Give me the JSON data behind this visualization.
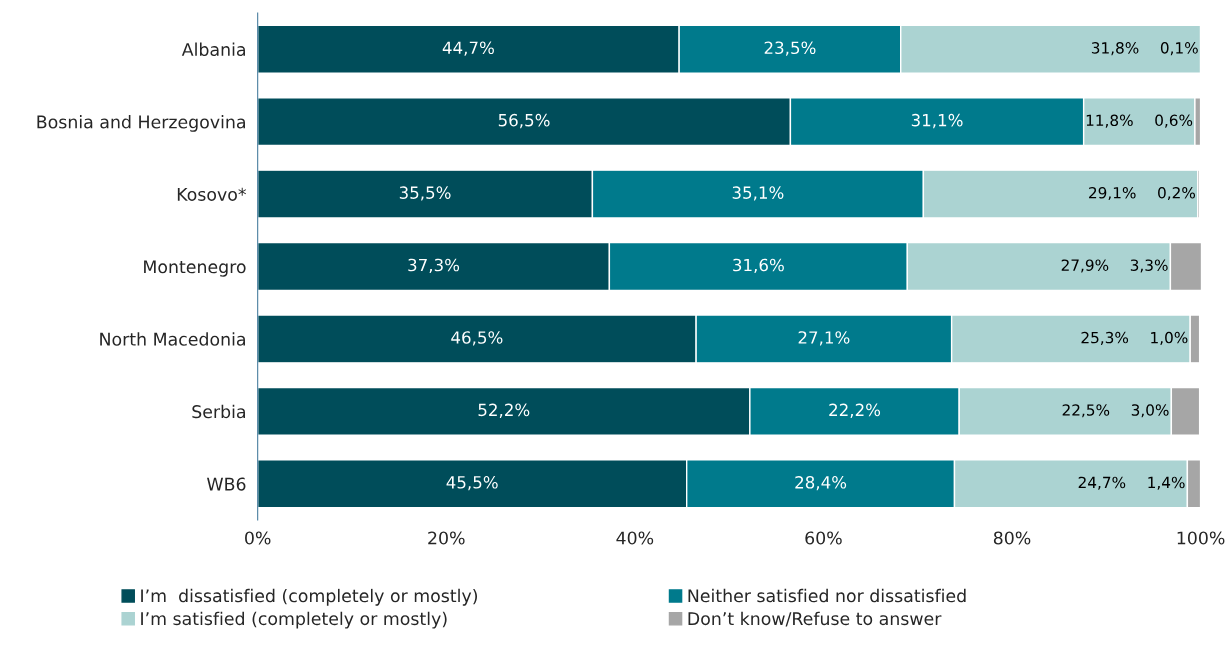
{
  "chart_data": {
    "type": "bar",
    "orientation": "horizontal",
    "stacked": true,
    "categories": [
      "Albania",
      "Bosnia and Herzegovina",
      "Kosovo*",
      "Montenegro",
      "North Macedonia",
      "Serbia",
      "WB6"
    ],
    "series": [
      {
        "name": "I’m  dissatisfied (completely or mostly)",
        "color": "#004d5a",
        "values": [
          44.7,
          56.5,
          35.5,
          37.3,
          46.5,
          52.2,
          45.5
        ],
        "value_labels": [
          "44,7%",
          "56,5%",
          "35,5%",
          "37,3%",
          "46,5%",
          "52,2%",
          "45,5%"
        ]
      },
      {
        "name": "Neither satisfied nor dissatisfied",
        "color": "#007a8c",
        "values": [
          23.5,
          31.1,
          35.1,
          31.6,
          27.1,
          22.2,
          28.4
        ],
        "value_labels": [
          "23,5%",
          "31,1%",
          "35,1%",
          "31,6%",
          "27,1%",
          "22,2%",
          "28,4%"
        ]
      },
      {
        "name": "I’m satisfied (completely or mostly)",
        "color": "#abd3d2",
        "values": [
          31.8,
          11.8,
          29.1,
          27.9,
          25.3,
          22.5,
          24.7
        ],
        "value_labels": [
          "31,8%",
          "11,8%",
          "29,1%",
          "27,9%",
          "25,3%",
          "22,5%",
          "24,7%"
        ]
      },
      {
        "name": "Don’t know/Refuse to answer",
        "color": "#a6a6a6",
        "values": [
          0.1,
          0.6,
          0.2,
          3.3,
          1.0,
          3.0,
          1.4
        ],
        "value_labels": [
          "0,1%",
          "0,6%",
          "0,2%",
          "3,3%",
          "1,0%",
          "3,0%",
          "1,4%"
        ]
      }
    ],
    "xlim": [
      0,
      100.2
    ],
    "xticks": [
      {
        "value": 0,
        "label": "0%"
      },
      {
        "value": 20,
        "label": "20%"
      },
      {
        "value": 40,
        "label": "40%"
      },
      {
        "value": 60,
        "label": "60%"
      },
      {
        "value": 80,
        "label": "80%"
      },
      {
        "value": 100,
        "label": "100%"
      }
    ],
    "grid": false,
    "legend": "bottom"
  }
}
